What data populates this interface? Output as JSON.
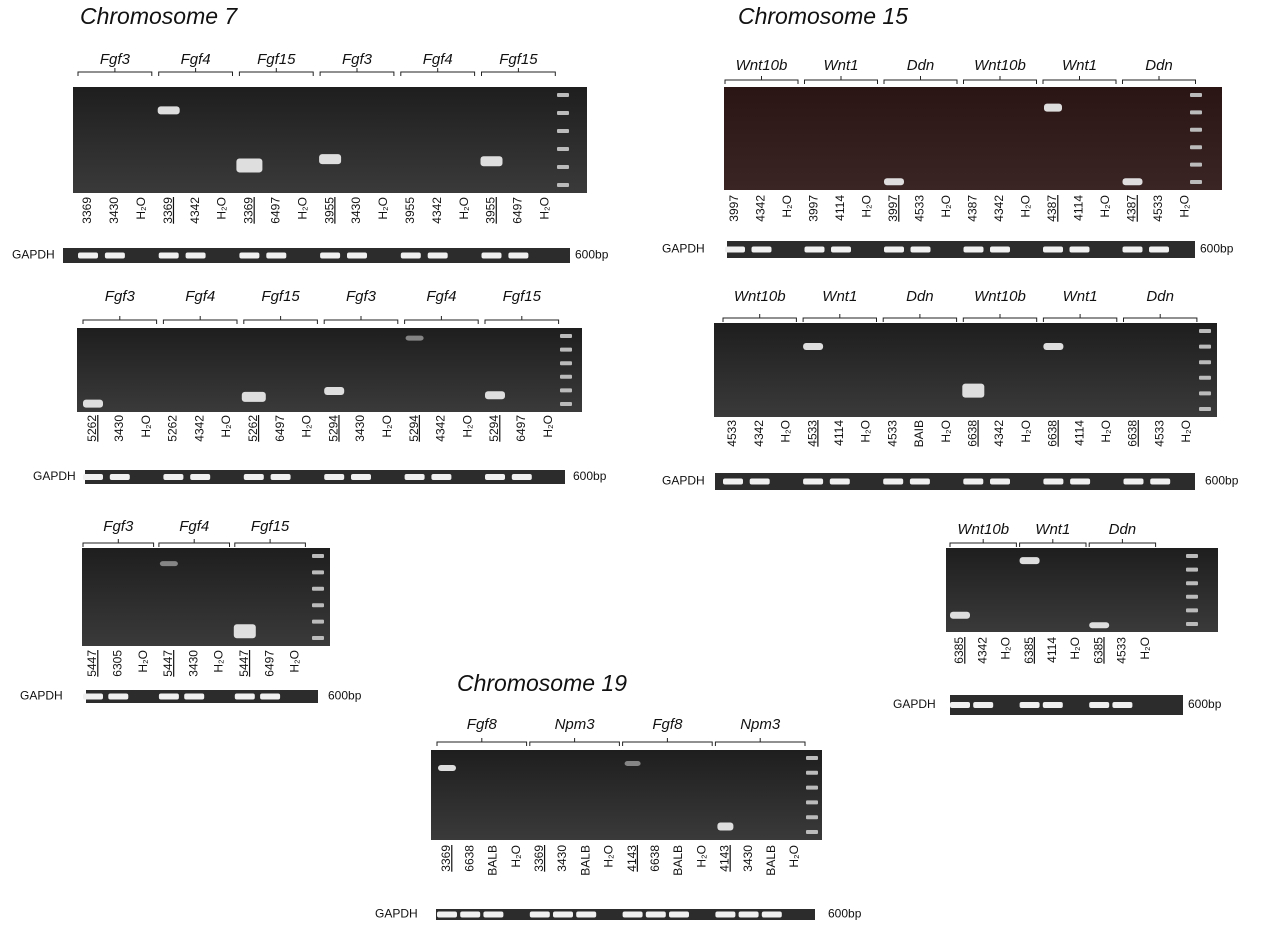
{
  "sections": [
    {
      "title": "Chromosome 7",
      "gels": [
        {
          "genes": [
            "Fgf3",
            "Fgf4",
            "Fgf15",
            "Fgf3",
            "Fgf4",
            "Fgf15"
          ],
          "lanes": [
            {
              "text": "3369",
              "underlined": false
            },
            {
              "text": "3430",
              "underlined": false
            },
            {
              "text": "H₂O",
              "underlined": false
            },
            {
              "text": "3369",
              "underlined": true
            },
            {
              "text": "4342",
              "underlined": false
            },
            {
              "text": "H₂O",
              "underlined": false
            },
            {
              "text": "3369",
              "underlined": true
            },
            {
              "text": "6497",
              "underlined": false
            },
            {
              "text": "H₂O",
              "underlined": false
            },
            {
              "text": "3955",
              "underlined": true
            },
            {
              "text": "3430",
              "underlined": false
            },
            {
              "text": "H₂O",
              "underlined": false
            },
            {
              "text": "3955",
              "underlined": false
            },
            {
              "text": "4342",
              "underlined": false
            },
            {
              "text": "H₂O",
              "underlined": false
            },
            {
              "text": "3955",
              "underlined": true
            },
            {
              "text": "6497",
              "underlined": false
            },
            {
              "text": "H₂O",
              "underlined": false
            }
          ],
          "loading_control": "GAPDH",
          "size_marker": "600bp"
        },
        {
          "genes": [
            "Fgf3",
            "Fgf4",
            "Fgf15",
            "Fgf3",
            "Fgf4",
            "Fgf15"
          ],
          "lanes": [
            {
              "text": "5262",
              "underlined": true
            },
            {
              "text": "3430",
              "underlined": false
            },
            {
              "text": "H₂O",
              "underlined": false
            },
            {
              "text": "5262",
              "underlined": false
            },
            {
              "text": "4342",
              "underlined": false
            },
            {
              "text": "H₂O",
              "underlined": false
            },
            {
              "text": "5262",
              "underlined": true
            },
            {
              "text": "6497",
              "underlined": false
            },
            {
              "text": "H₂O",
              "underlined": false
            },
            {
              "text": "5294",
              "underlined": true
            },
            {
              "text": "3430",
              "underlined": false
            },
            {
              "text": "H₂O",
              "underlined": false
            },
            {
              "text": "5294",
              "underlined": true
            },
            {
              "text": "4342",
              "underlined": false
            },
            {
              "text": "H₂O",
              "underlined": false
            },
            {
              "text": "5294",
              "underlined": true
            },
            {
              "text": "6497",
              "underlined": false
            },
            {
              "text": "H₂O",
              "underlined": false
            }
          ],
          "loading_control": "GAPDH",
          "size_marker": "600bp"
        },
        {
          "genes": [
            "Fgf3",
            "Fgf4",
            "Fgf15"
          ],
          "lanes": [
            {
              "text": "5447",
              "underlined": true
            },
            {
              "text": "6305",
              "underlined": false
            },
            {
              "text": "H₂O",
              "underlined": false
            },
            {
              "text": "5447",
              "underlined": true
            },
            {
              "text": "3430",
              "underlined": false
            },
            {
              "text": "H₂O",
              "underlined": false
            },
            {
              "text": "5447",
              "underlined": true
            },
            {
              "text": "6497",
              "underlined": false
            },
            {
              "text": "H₂O",
              "underlined": false
            }
          ],
          "loading_control": "GAPDH",
          "size_marker": "600bp"
        }
      ]
    },
    {
      "title": "Chromosome 15",
      "gels": [
        {
          "genes": [
            "Wnt10b",
            "Wnt1",
            "Ddn",
            "Wnt10b",
            "Wnt1",
            "Ddn"
          ],
          "lanes": [
            {
              "text": "3997",
              "underlined": false
            },
            {
              "text": "4342",
              "underlined": false
            },
            {
              "text": "H₂O",
              "underlined": false
            },
            {
              "text": "3997",
              "underlined": false
            },
            {
              "text": "4114",
              "underlined": false
            },
            {
              "text": "H₂O",
              "underlined": false
            },
            {
              "text": "3997",
              "underlined": true
            },
            {
              "text": "4533",
              "underlined": false
            },
            {
              "text": "H₂O",
              "underlined": false
            },
            {
              "text": "4387",
              "underlined": false
            },
            {
              "text": "4342",
              "underlined": false
            },
            {
              "text": "H₂O",
              "underlined": false
            },
            {
              "text": "4387",
              "underlined": true
            },
            {
              "text": "4114",
              "underlined": false
            },
            {
              "text": "H₂O",
              "underlined": false
            },
            {
              "text": "4387",
              "underlined": true
            },
            {
              "text": "4533",
              "underlined": false
            },
            {
              "text": "H₂O",
              "underlined": false
            }
          ],
          "loading_control": "GAPDH",
          "size_marker": "600bp"
        },
        {
          "genes": [
            "Wnt10b",
            "Wnt1",
            "Ddn",
            "Wnt10b",
            "Wnt1",
            "Ddn"
          ],
          "lanes": [
            {
              "text": "4533",
              "underlined": false
            },
            {
              "text": "4342",
              "underlined": false
            },
            {
              "text": "H₂O",
              "underlined": false
            },
            {
              "text": "4533",
              "underlined": true
            },
            {
              "text": "4114",
              "underlined": false
            },
            {
              "text": "H₂O",
              "underlined": false
            },
            {
              "text": "4533",
              "underlined": false
            },
            {
              "text": "BAIB",
              "underlined": false
            },
            {
              "text": "H₂O",
              "underlined": false
            },
            {
              "text": "6638",
              "underlined": true
            },
            {
              "text": "4342",
              "underlined": false
            },
            {
              "text": "H₂O",
              "underlined": false
            },
            {
              "text": "6638",
              "underlined": true
            },
            {
              "text": "4114",
              "underlined": false
            },
            {
              "text": "H₂O",
              "underlined": false
            },
            {
              "text": "6638",
              "underlined": true
            },
            {
              "text": "4533",
              "underlined": false
            },
            {
              "text": "H₂O",
              "underlined": false
            }
          ],
          "loading_control": "GAPDH",
          "size_marker": "600bp"
        },
        {
          "genes": [
            "Wnt10b",
            "Wnt1",
            "Ddn"
          ],
          "lanes": [
            {
              "text": "6385",
              "underlined": true
            },
            {
              "text": "4342",
              "underlined": false
            },
            {
              "text": "H₂O",
              "underlined": false
            },
            {
              "text": "6385",
              "underlined": true
            },
            {
              "text": "4114",
              "underlined": false
            },
            {
              "text": "H₂O",
              "underlined": false
            },
            {
              "text": "6385",
              "underlined": true
            },
            {
              "text": "4533",
              "underlined": false
            },
            {
              "text": "H₂O",
              "underlined": false
            }
          ],
          "loading_control": "GAPDH",
          "size_marker": "600bp"
        }
      ]
    },
    {
      "title": "Chromosome 19",
      "gels": [
        {
          "genes": [
            "Fgf8",
            "Npm3",
            "Fgf8",
            "Npm3"
          ],
          "lanes": [
            {
              "text": "3369",
              "underlined": true
            },
            {
              "text": "6638",
              "underlined": false
            },
            {
              "text": "BALB",
              "underlined": false
            },
            {
              "text": "H₂O",
              "underlined": false
            },
            {
              "text": "3369",
              "underlined": true
            },
            {
              "text": "3430",
              "underlined": false
            },
            {
              "text": "BALB",
              "underlined": false
            },
            {
              "text": "H₂O",
              "underlined": false
            },
            {
              "text": "4143",
              "underlined": true
            },
            {
              "text": "6638",
              "underlined": false
            },
            {
              "text": "BALB",
              "underlined": false
            },
            {
              "text": "H₂O",
              "underlined": false
            },
            {
              "text": "4143",
              "underlined": true
            },
            {
              "text": "3430",
              "underlined": false
            },
            {
              "text": "BALB",
              "underlined": false
            },
            {
              "text": "H₂O",
              "underlined": false
            }
          ],
          "loading_control": "GAPDH",
          "size_marker": "600bp"
        }
      ]
    }
  ]
}
